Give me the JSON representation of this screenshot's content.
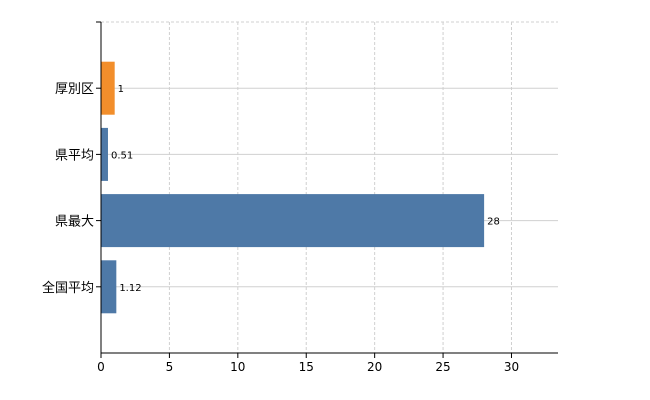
{
  "chart_data": {
    "type": "bar",
    "orientation": "horizontal",
    "categories": [
      "厚別区",
      "県平均",
      "県最大",
      "全国平均"
    ],
    "values": [
      1,
      0.51,
      28,
      1.12
    ],
    "data_labels": [
      "1",
      "0.51",
      "28",
      "1.12"
    ],
    "colors": [
      "#f28e2b",
      "#4e79a7",
      "#4e79a7",
      "#4e79a7"
    ],
    "title": "",
    "xlabel": "",
    "ylabel": "",
    "xlim": [
      0,
      33.4
    ],
    "xticks": [
      0,
      5,
      10,
      15,
      20,
      25,
      30
    ],
    "grid": true,
    "legend": "none"
  }
}
